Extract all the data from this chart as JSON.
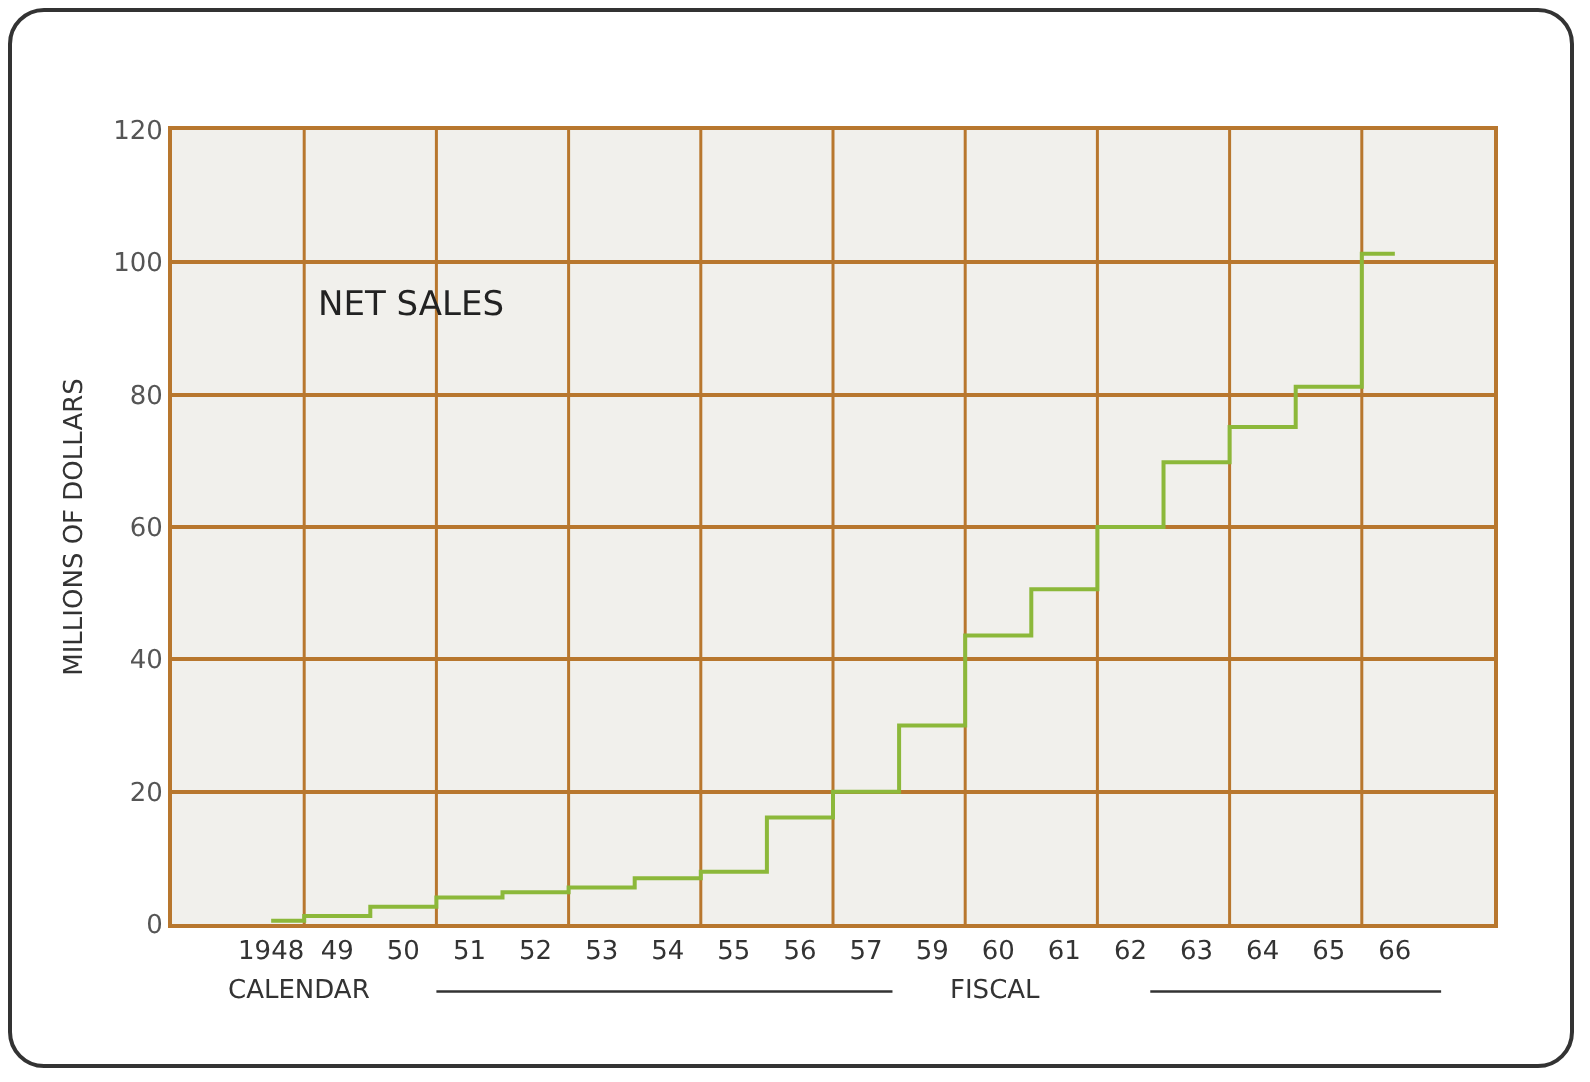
{
  "chart_data": {
    "type": "step",
    "title": "NET SALES",
    "ylabel": "MILLIONS OF DOLLARS",
    "categories": [
      "1948",
      "49",
      "50",
      "51",
      "52",
      "53",
      "54",
      "55",
      "56",
      "57",
      "59",
      "60",
      "61",
      "62",
      "63",
      "64",
      "65",
      "66"
    ],
    "series": [
      {
        "color": "#8cb83a",
        "values": [
          0.5,
          1.2,
          2.6,
          4.0,
          4.8,
          5.5,
          6.9,
          7.9,
          16.1,
          20,
          30,
          43.6,
          50.6,
          60,
          69.8,
          75.1,
          81.2,
          101.3
        ]
      }
    ],
    "ylim": [
      0,
      120
    ],
    "yticks": [
      0,
      20,
      40,
      60,
      80,
      100,
      120
    ],
    "grid": true,
    "annotations": [
      "CALENDAR",
      "FISCAL"
    ]
  }
}
